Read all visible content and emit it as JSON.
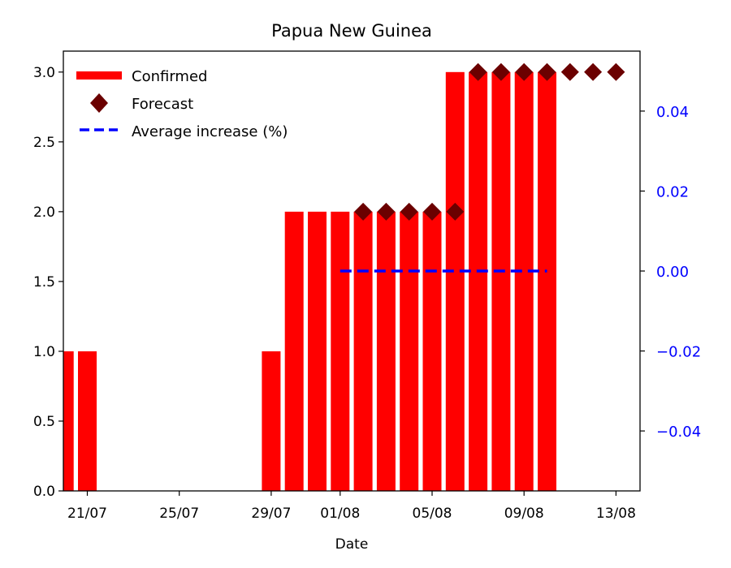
{
  "chart_data": {
    "type": "bar",
    "title": "Papua New Guinea",
    "xlabel": "Date",
    "ylabel": "",
    "ylim": [
      0,
      3.15
    ],
    "y2lim": [
      -0.055,
      0.055
    ],
    "x_tick_labels": [
      "21/07",
      "25/07",
      "29/07",
      "01/08",
      "05/08",
      "09/08",
      "13/08"
    ],
    "x_tick_dates": [
      "2020-07-21",
      "2020-07-25",
      "2020-07-29",
      "2020-08-01",
      "2020-08-05",
      "2020-08-09",
      "2020-08-13"
    ],
    "y_ticks": [
      0.0,
      0.5,
      1.0,
      1.5,
      2.0,
      2.5,
      3.0
    ],
    "y_tick_labels": [
      "0.0",
      "0.5",
      "1.0",
      "1.5",
      "2.0",
      "2.5",
      "3.0"
    ],
    "y2_ticks": [
      -0.04,
      -0.02,
      0.0,
      0.02,
      0.04
    ],
    "y2_tick_labels": [
      "−0.04",
      "−0.02",
      "0.00",
      "0.02",
      "0.04"
    ],
    "legend_position": "top-left",
    "colors": {
      "confirmed": "#ff0000",
      "forecast": "#6b0000",
      "average": "#0000ff",
      "y2_ticks": "#0000ff"
    },
    "series": [
      {
        "name": "Confirmed",
        "type": "bar",
        "points": [
          {
            "date": "2020-07-20",
            "value": 1
          },
          {
            "date": "2020-07-21",
            "value": 1
          },
          {
            "date": "2020-07-29",
            "value": 1
          },
          {
            "date": "2020-07-30",
            "value": 2
          },
          {
            "date": "2020-07-31",
            "value": 2
          },
          {
            "date": "2020-08-01",
            "value": 2
          },
          {
            "date": "2020-08-02",
            "value": 2
          },
          {
            "date": "2020-08-03",
            "value": 2
          },
          {
            "date": "2020-08-04",
            "value": 2
          },
          {
            "date": "2020-08-05",
            "value": 2
          },
          {
            "date": "2020-08-06",
            "value": 3
          },
          {
            "date": "2020-08-07",
            "value": 3
          },
          {
            "date": "2020-08-08",
            "value": 3
          },
          {
            "date": "2020-08-09",
            "value": 3
          },
          {
            "date": "2020-08-10",
            "value": 3
          }
        ]
      },
      {
        "name": "Forecast",
        "type": "scatter",
        "marker": "diamond",
        "points": [
          {
            "date": "2020-08-02",
            "value": 2
          },
          {
            "date": "2020-08-03",
            "value": 2
          },
          {
            "date": "2020-08-04",
            "value": 2
          },
          {
            "date": "2020-08-05",
            "value": 2
          },
          {
            "date": "2020-08-06",
            "value": 2
          },
          {
            "date": "2020-08-07",
            "value": 3
          },
          {
            "date": "2020-08-08",
            "value": 3
          },
          {
            "date": "2020-08-09",
            "value": 3
          },
          {
            "date": "2020-08-10",
            "value": 3
          },
          {
            "date": "2020-08-11",
            "value": 3
          },
          {
            "date": "2020-08-12",
            "value": 3
          },
          {
            "date": "2020-08-13",
            "value": 3
          }
        ]
      },
      {
        "name": "Average increase (%)",
        "type": "line",
        "axis": "right",
        "style": "dashed",
        "points": [
          {
            "date": "2020-08-01",
            "value": 0.0
          },
          {
            "date": "2020-08-10",
            "value": 0.0
          }
        ]
      }
    ]
  }
}
